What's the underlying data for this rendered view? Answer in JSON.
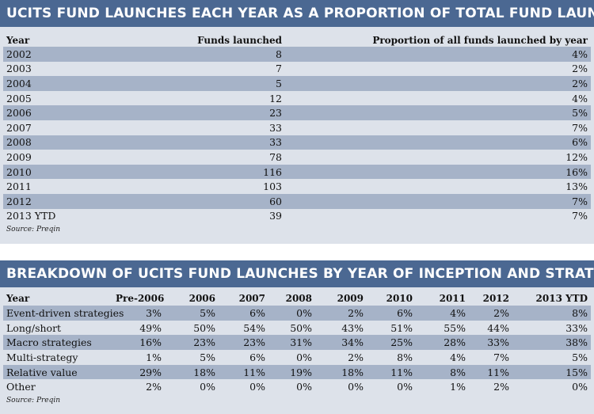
{
  "launches": {
    "title": "UCITS FUND LAUNCHES EACH YEAR AS A PROPORTION OF TOTAL FUND LAUNCHES",
    "headers": [
      "Year",
      "Funds launched",
      "Proportion of all funds launched by year"
    ],
    "rows": [
      [
        "2002",
        "8",
        "4%"
      ],
      [
        "2003",
        "7",
        "2%"
      ],
      [
        "2004",
        "5",
        "2%"
      ],
      [
        "2005",
        "12",
        "4%"
      ],
      [
        "2006",
        "23",
        "5%"
      ],
      [
        "2007",
        "33",
        "7%"
      ],
      [
        "2008",
        "33",
        "6%"
      ],
      [
        "2009",
        "78",
        "12%"
      ],
      [
        "2010",
        "116",
        "16%"
      ],
      [
        "2011",
        "103",
        "13%"
      ],
      [
        "2012",
        "60",
        "7%"
      ],
      [
        "2013 YTD",
        "39",
        "7%"
      ]
    ],
    "source": "Source: Preqin"
  },
  "strategy": {
    "title": "BREAKDOWN OF UCITS FUND LAUNCHES BY YEAR OF INCEPTION AND STRATEGY",
    "headers": [
      "Year",
      "Pre-2006",
      "2006",
      "2007",
      "2008",
      "2009",
      "2010",
      "2011",
      "2012",
      "2013 YTD"
    ],
    "rows": [
      [
        "Event-driven strategies",
        "3%",
        "5%",
        "6%",
        "0%",
        "2%",
        "6%",
        "4%",
        "2%",
        "8%"
      ],
      [
        "Long/short",
        "49%",
        "50%",
        "54%",
        "50%",
        "43%",
        "51%",
        "55%",
        "44%",
        "33%"
      ],
      [
        "Macro strategies",
        "16%",
        "23%",
        "23%",
        "31%",
        "34%",
        "25%",
        "28%",
        "33%",
        "38%"
      ],
      [
        "Multi-strategy",
        "1%",
        "5%",
        "6%",
        "0%",
        "2%",
        "8%",
        "4%",
        "7%",
        "5%"
      ],
      [
        "Relative value",
        "29%",
        "18%",
        "11%",
        "19%",
        "18%",
        "11%",
        "8%",
        "11%",
        "15%"
      ],
      [
        "Other",
        "2%",
        "0%",
        "0%",
        "0%",
        "0%",
        "0%",
        "1%",
        "2%",
        "0%"
      ]
    ],
    "source": "Source: Preqin"
  }
}
